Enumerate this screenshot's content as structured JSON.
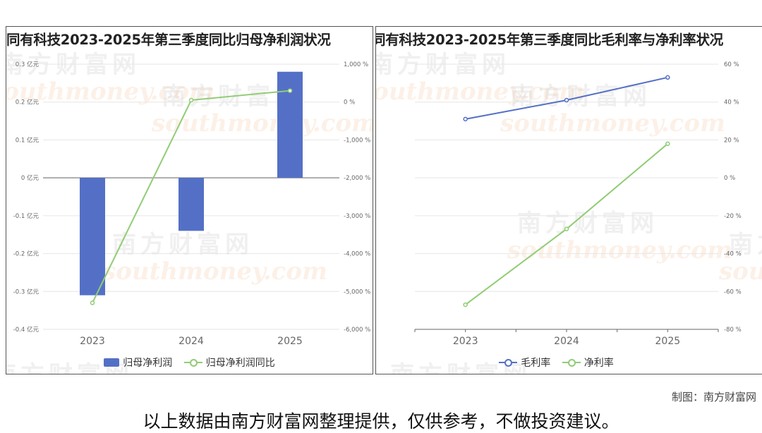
{
  "watermark": {
    "cn": "南方财富网",
    "en": "southmoney.com"
  },
  "charts": [
    {
      "title": "同有科技2023-2025年第三季度同比归母净利润状况",
      "left_ticks": [
        "0.3 亿元",
        "0.2 亿元",
        "0.1 亿元",
        "0 亿元",
        "-0.1 亿元",
        "-0.2 亿元",
        "-0.3 亿元",
        "-0.4 亿元"
      ],
      "right_ticks": [
        "1,000 %",
        "0 %",
        "-1,000 %",
        "-2,000 %",
        "-3,000 %",
        "-4,000 %",
        "-5,000 %",
        "-6,000 %"
      ],
      "legend": [
        "归母净利润",
        "归母净利润同比"
      ]
    },
    {
      "title": "同有科技2023-2025年第三季度同比毛利率与净利率状况",
      "right_ticks": [
        "60 %",
        "40 %",
        "20 %",
        "0 %",
        "-20 %",
        "-40 %",
        "-60 %",
        "-80 %"
      ],
      "legend": [
        "毛利率",
        "净利率"
      ]
    }
  ],
  "chart_data": [
    {
      "type": "bar",
      "title": "同有科技2023-2025年第三季度同比归母净利润状况",
      "categories": [
        "2023",
        "2024",
        "2025"
      ],
      "series": [
        {
          "name": "归母净利润",
          "kind": "bar",
          "axis": "left",
          "unit": "亿元",
          "values": [
            -0.31,
            -0.14,
            0.28
          ],
          "color": "#5470c6"
        },
        {
          "name": "归母净利润同比",
          "kind": "line",
          "axis": "right",
          "unit": "%",
          "values": [
            -5300,
            50,
            300
          ],
          "color": "#91cc75"
        }
      ],
      "ylim_left": [
        -0.4,
        0.3
      ],
      "ylim_right": [
        -6000,
        1000
      ],
      "grid": true,
      "legend_position": "bottom"
    },
    {
      "type": "line",
      "title": "同有科技2023-2025年第三季度同比毛利率与净利率状况",
      "categories": [
        "2023",
        "2024",
        "2025"
      ],
      "series": [
        {
          "name": "毛利率",
          "axis": "right",
          "unit": "%",
          "values": [
            31,
            41,
            53
          ],
          "color": "#5470c6"
        },
        {
          "name": "净利率",
          "axis": "right",
          "unit": "%",
          "values": [
            -67,
            -27,
            18
          ],
          "color": "#91cc75"
        }
      ],
      "ylim": [
        -80,
        60
      ],
      "grid": true,
      "legend_position": "bottom"
    }
  ],
  "credit": "制图：南方财富网",
  "footnote": "以上数据由南方财富网整理提供，仅供参考，不做投资建议。"
}
